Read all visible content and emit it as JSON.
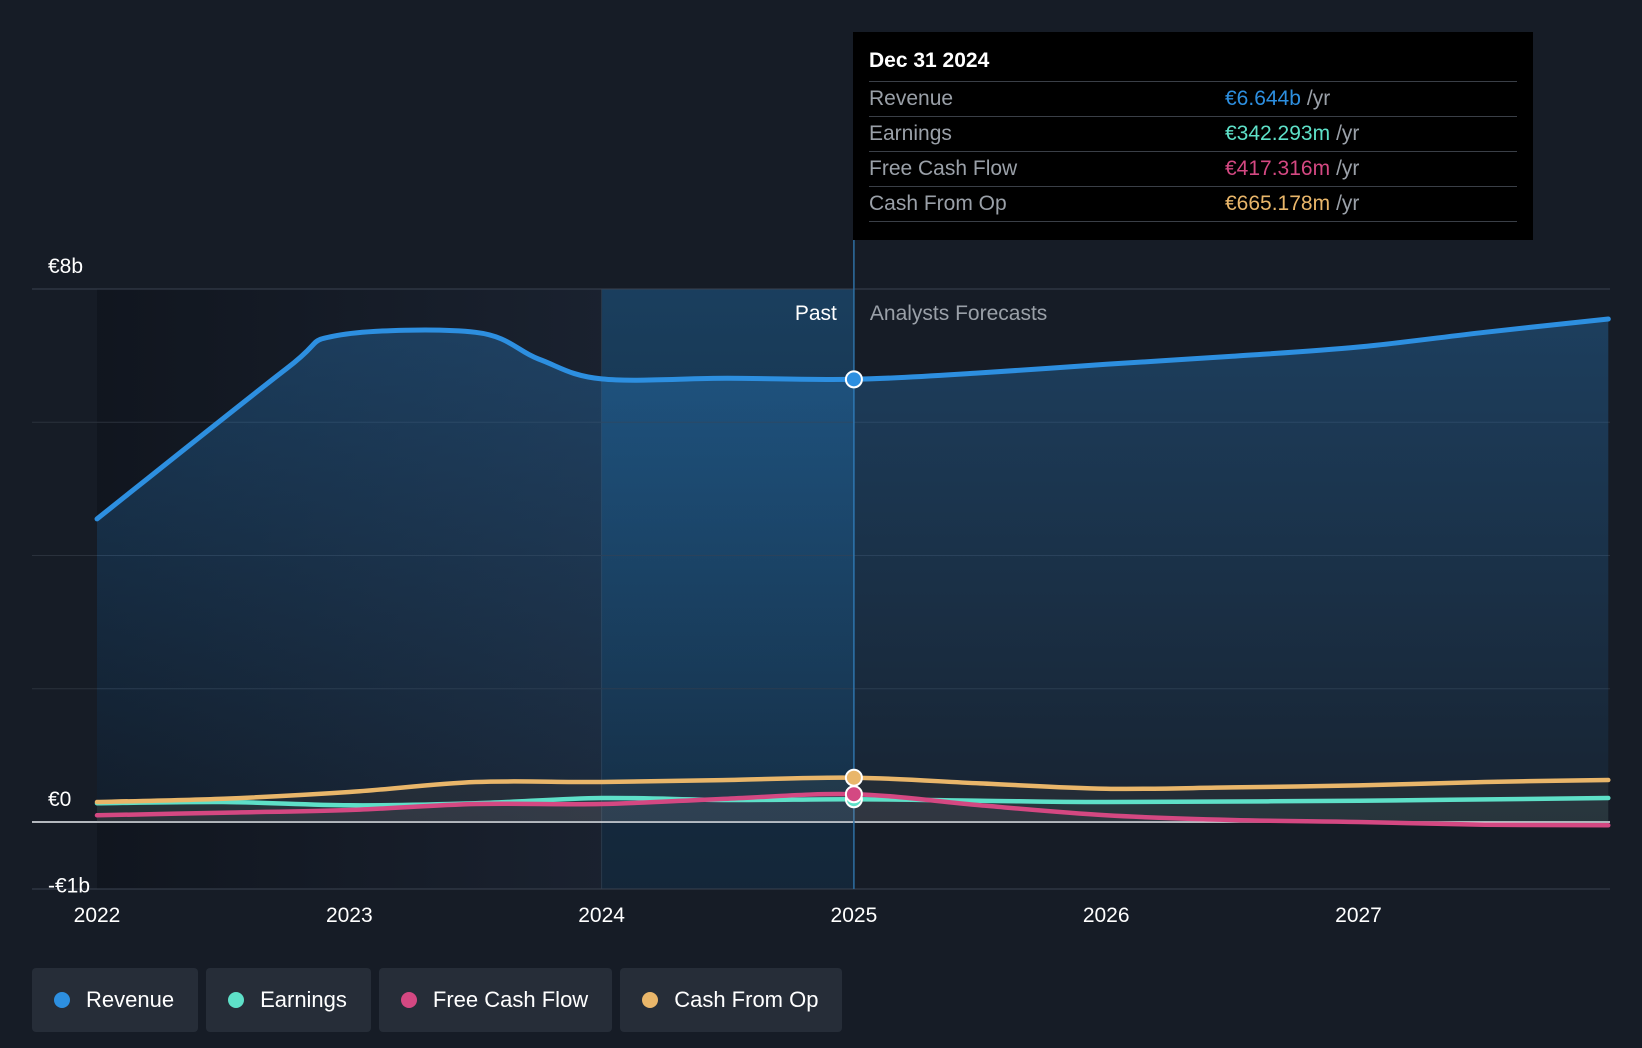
{
  "chart_data": {
    "type": "line",
    "x_range": [
      2022,
      2028
    ],
    "ylim": [
      -1,
      8
    ],
    "y_ticks": [
      {
        "value": 8,
        "label": "€8b"
      },
      {
        "value": 0,
        "label": "€0"
      },
      {
        "value": -1,
        "label": "-€1b"
      }
    ],
    "x_ticks": [
      "2022",
      "2023",
      "2024",
      "2025",
      "2026",
      "2027"
    ],
    "past_label": "Past",
    "forecast_label": "Analysts Forecasts",
    "divider_x": 2025,
    "series": [
      {
        "name": "Revenue",
        "color": "#2d8fe0",
        "points": [
          [
            2022.0,
            4.55
          ],
          [
            2022.75,
            6.8
          ],
          [
            2022.95,
            7.3
          ],
          [
            2023.5,
            7.35
          ],
          [
            2023.75,
            6.95
          ],
          [
            2024.0,
            6.65
          ],
          [
            2024.5,
            6.66
          ],
          [
            2025.0,
            6.644
          ],
          [
            2025.5,
            6.74
          ],
          [
            2026.0,
            6.87
          ],
          [
            2026.5,
            6.99
          ],
          [
            2027.0,
            7.13
          ],
          [
            2027.5,
            7.35
          ],
          [
            2027.99,
            7.55
          ]
        ]
      },
      {
        "name": "Earnings",
        "color": "#5ee0c8",
        "points": [
          [
            2022.0,
            0.28
          ],
          [
            2022.5,
            0.3
          ],
          [
            2023.0,
            0.25
          ],
          [
            2023.5,
            0.28
          ],
          [
            2024.0,
            0.36
          ],
          [
            2024.5,
            0.33
          ],
          [
            2025.0,
            0.342
          ],
          [
            2025.5,
            0.32
          ],
          [
            2026.0,
            0.3
          ],
          [
            2027.0,
            0.32
          ],
          [
            2027.99,
            0.36
          ]
        ]
      },
      {
        "name": "Free Cash Flow",
        "color": "#d44882",
        "points": [
          [
            2022.0,
            0.1
          ],
          [
            2022.5,
            0.14
          ],
          [
            2023.0,
            0.18
          ],
          [
            2023.5,
            0.27
          ],
          [
            2024.0,
            0.27
          ],
          [
            2024.5,
            0.35
          ],
          [
            2025.0,
            0.417
          ],
          [
            2025.5,
            0.25
          ],
          [
            2026.0,
            0.1
          ],
          [
            2026.5,
            0.03
          ],
          [
            2027.0,
            0.0
          ],
          [
            2027.5,
            -0.04
          ],
          [
            2027.99,
            -0.05
          ]
        ]
      },
      {
        "name": "Cash From Op",
        "color": "#e9b66a",
        "points": [
          [
            2022.0,
            0.3
          ],
          [
            2022.5,
            0.35
          ],
          [
            2023.0,
            0.45
          ],
          [
            2023.5,
            0.6
          ],
          [
            2024.0,
            0.6
          ],
          [
            2024.5,
            0.63
          ],
          [
            2025.0,
            0.665
          ],
          [
            2025.5,
            0.58
          ],
          [
            2026.0,
            0.5
          ],
          [
            2026.5,
            0.52
          ],
          [
            2027.0,
            0.55
          ],
          [
            2027.5,
            0.6
          ],
          [
            2027.99,
            0.63
          ]
        ]
      }
    ]
  },
  "tooltip": {
    "date": "Dec 31 2024",
    "unit": "/yr",
    "rows": [
      {
        "label": "Revenue",
        "value": "€6.644b",
        "color": "#2d8fe0"
      },
      {
        "label": "Earnings",
        "value": "€342.293m",
        "color": "#5ee0c8"
      },
      {
        "label": "Free Cash Flow",
        "value": "€417.316m",
        "color": "#d44882"
      },
      {
        "label": "Cash From Op",
        "value": "€665.178m",
        "color": "#e9b66a"
      }
    ]
  },
  "legend": [
    {
      "label": "Revenue",
      "color": "#2d8fe0"
    },
    {
      "label": "Earnings",
      "color": "#5ee0c8"
    },
    {
      "label": "Free Cash Flow",
      "color": "#d44882"
    },
    {
      "label": "Cash From Op",
      "color": "#e9b66a"
    }
  ]
}
